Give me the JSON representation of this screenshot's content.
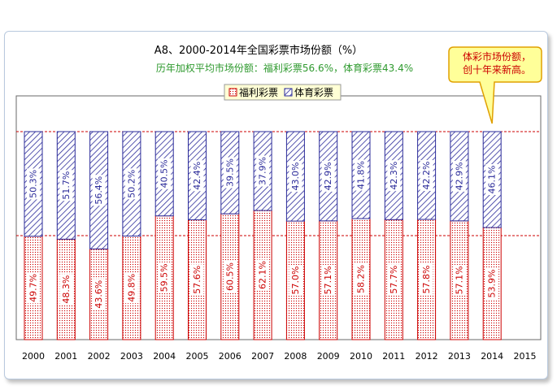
{
  "chart_data": {
    "type": "bar",
    "stacked": true,
    "percent_stacked": true,
    "title": "A8、2000-2014年全国彩票市场份额（%）",
    "subtitle": "历年加权平均市场份额：福利彩票56.6%，体育彩票43.4%",
    "categories": [
      "2000",
      "2001",
      "2002",
      "2003",
      "2004",
      "2005",
      "2006",
      "2007",
      "2008",
      "2009",
      "2010",
      "2011",
      "2012",
      "2013",
      "2014",
      "2015"
    ],
    "series": [
      {
        "name": "福利彩票",
        "color": "#cc0000",
        "values": [
          49.7,
          48.3,
          43.6,
          49.8,
          59.5,
          57.6,
          60.5,
          62.1,
          57.0,
          57.1,
          58.2,
          57.7,
          57.8,
          57.1,
          53.9,
          null
        ],
        "labels": [
          "49.7%",
          "48.3%",
          "43.6%",
          "49.8%",
          "59.5%",
          "57.6%",
          "60.5%",
          "62.1%",
          "57.0%",
          "57.1%",
          "58.2%",
          "57.7%",
          "57.8%",
          "57.1%",
          "53.9%",
          ""
        ]
      },
      {
        "name": "体育彩票",
        "color": "#2b2b9a",
        "values": [
          50.3,
          51.7,
          56.4,
          50.2,
          40.5,
          42.4,
          39.5,
          37.9,
          43.0,
          42.9,
          41.8,
          42.3,
          42.2,
          42.9,
          46.1,
          null
        ],
        "labels": [
          "50.3%",
          "51.7%",
          "56.4%",
          "50.2%",
          "40.5%",
          "42.4%",
          "39.5%",
          "37.9%",
          "43.0%",
          "42.9%",
          "41.8%",
          "42.3%",
          "42.2%",
          "42.9%",
          "46.1%",
          ""
        ]
      }
    ],
    "ylim": [
      0,
      100
    ],
    "reference_lines": [
      50,
      100
    ],
    "legend_position": "top-center",
    "annotation": {
      "text_lines": [
        "体彩市场份额，",
        "创十年来新高。"
      ],
      "points_to": "2014",
      "fill": "#ffff99",
      "border": "#e0a000"
    }
  }
}
